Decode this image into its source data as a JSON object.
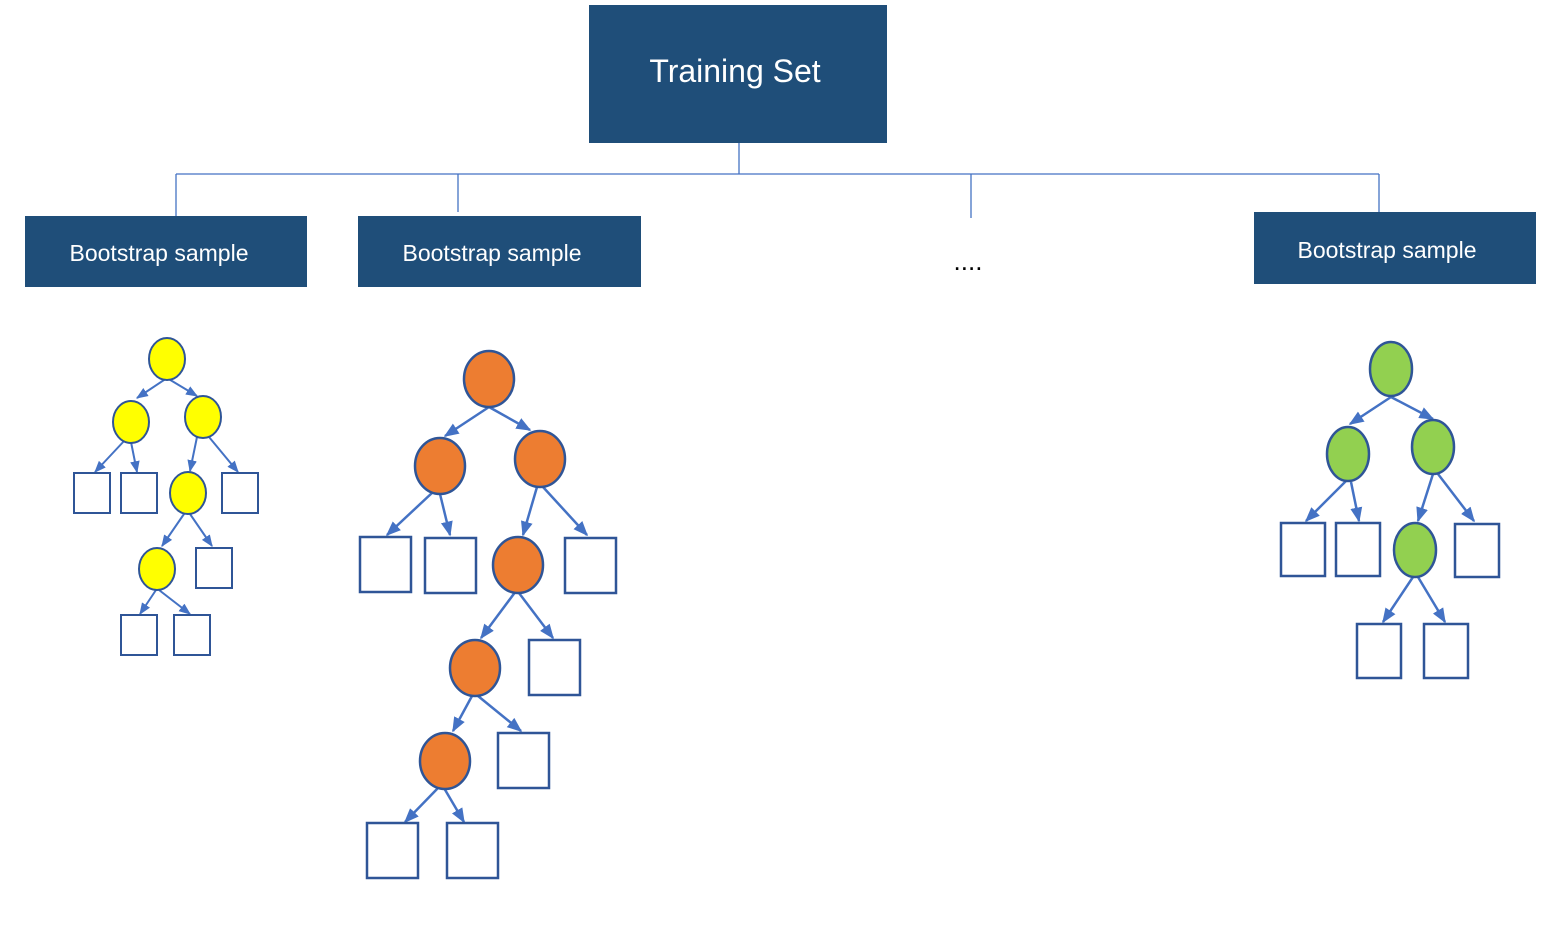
{
  "root": {
    "label": "Training Set"
  },
  "samples": [
    {
      "label": "Bootstrap sample"
    },
    {
      "label": "Bootstrap sample"
    },
    {
      "label": "Bootstrap sample"
    }
  ],
  "ellipsis": "....",
  "colors": {
    "box_fill": "#1f4e79",
    "box_text": "#ffffff",
    "connector": "#4472c4",
    "node_stroke": "#2f5597",
    "tree1_fill": "#ffff00",
    "tree2_fill": "#ed7d31",
    "tree3_fill": "#92d050"
  },
  "trees": [
    {
      "name": "tree-1",
      "internal_nodes": 5,
      "leaf_nodes": 6,
      "color": "yellow"
    },
    {
      "name": "tree-2",
      "internal_nodes": 6,
      "leaf_nodes": 7,
      "color": "orange"
    },
    {
      "name": "tree-3",
      "internal_nodes": 4,
      "leaf_nodes": 5,
      "color": "green"
    }
  ]
}
